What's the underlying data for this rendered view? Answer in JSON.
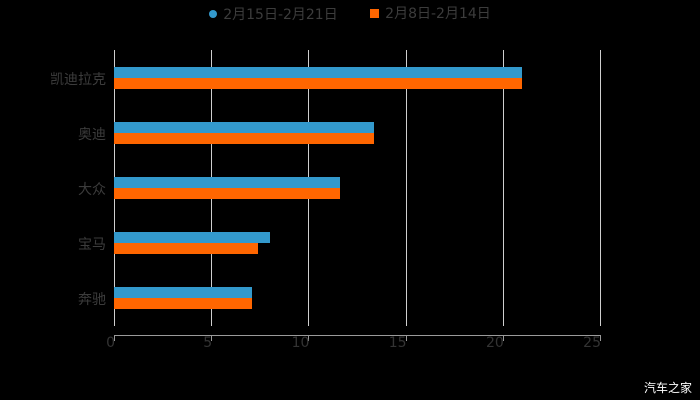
{
  "chart_data": {
    "type": "bar",
    "orientation": "horizontal",
    "title": "",
    "xlabel": "",
    "ylabel": "",
    "xlim": [
      0,
      25
    ],
    "x_ticks": [
      "0",
      "5",
      "10",
      "15",
      "20",
      "25"
    ],
    "grid": true,
    "legend_position": "top",
    "categories": [
      "凯迪拉克",
      "奥迪",
      "大众",
      "宝马",
      "奔驰"
    ],
    "series": [
      {
        "name": "2月15日-2月21日",
        "color": "#3399cc",
        "values": [
          21,
          13.4,
          11.6,
          8.0,
          7.1
        ]
      },
      {
        "name": "2月8日-2月14日",
        "color": "#ff6600",
        "values": [
          21,
          13.4,
          11.6,
          7.4,
          7.1
        ]
      }
    ]
  },
  "legend": {
    "series1": "2月15日-2月21日",
    "series2": "2月8日-2月14日"
  },
  "watermark": "汽车之家"
}
